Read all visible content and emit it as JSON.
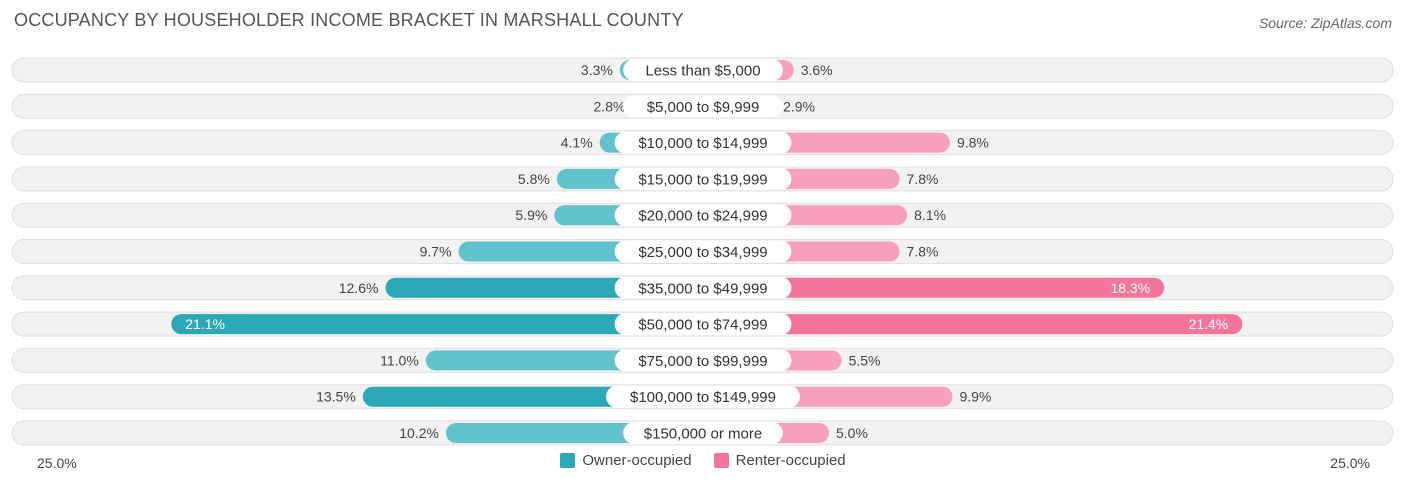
{
  "title": "OCCUPANCY BY HOUSEHOLDER INCOME BRACKET IN MARSHALL COUNTY",
  "source": "Source: ZipAtlas.com",
  "colors": {
    "owner": "#62c2cc",
    "owner_strong": "#2aa8b7",
    "renter": "#f7a0bc",
    "renter_strong": "#f3759c",
    "row_bg": "#f2f2f2",
    "row_border": "#e0e0e0"
  },
  "chart_data": {
    "type": "bar",
    "orientation": "horizontal-diverging",
    "title": "OCCUPANCY BY HOUSEHOLDER INCOME BRACKET IN MARSHALL COUNTY",
    "categories": [
      "Less than $5,000",
      "$5,000 to $9,999",
      "$10,000 to $14,999",
      "$15,000 to $19,999",
      "$20,000 to $24,999",
      "$25,000 to $34,999",
      "$35,000 to $49,999",
      "$50,000 to $74,999",
      "$75,000 to $99,999",
      "$100,000 to $149,999",
      "$150,000 or more"
    ],
    "series": [
      {
        "name": "Owner-occupied",
        "side": "left",
        "values": [
          3.3,
          2.8,
          4.1,
          5.8,
          5.9,
          9.7,
          12.6,
          21.1,
          11.0,
          13.5,
          10.2
        ],
        "labels": [
          "3.3%",
          "2.8%",
          "4.1%",
          "5.8%",
          "5.9%",
          "9.7%",
          "12.6%",
          "21.1%",
          "11.0%",
          "13.5%",
          "10.2%"
        ]
      },
      {
        "name": "Renter-occupied",
        "side": "right",
        "values": [
          3.6,
          2.9,
          9.8,
          7.8,
          8.1,
          7.8,
          18.3,
          21.4,
          5.5,
          9.9,
          5.0
        ],
        "labels": [
          "3.6%",
          "2.9%",
          "9.8%",
          "7.8%",
          "8.1%",
          "7.8%",
          "18.3%",
          "21.4%",
          "5.5%",
          "9.9%",
          "5.0%"
        ]
      }
    ],
    "xlim": [
      -25,
      25
    ],
    "axis_min_label": "25.0%",
    "axis_max_label": "25.0%",
    "legend_position": "bottom-center"
  }
}
